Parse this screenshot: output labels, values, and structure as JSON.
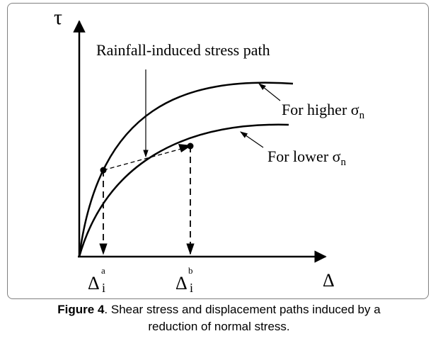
{
  "diagram": {
    "y_axis_label": "τ",
    "x_axis_label": "Δ",
    "path_label": "Rainfall-induced stress path",
    "higher_label_prefix": "For higher ",
    "lower_label_prefix": "For lower ",
    "sigma_symbol": "σ",
    "sigma_subscript": "n",
    "delta_symbol": "Δ",
    "delta_subscript": "i",
    "point_a_superscript": "a",
    "point_b_superscript": "b"
  },
  "caption": {
    "label": "Figure 4",
    "text": ". Shear stress and displacement paths induced by a",
    "text_line2": "reduction of normal stress."
  }
}
